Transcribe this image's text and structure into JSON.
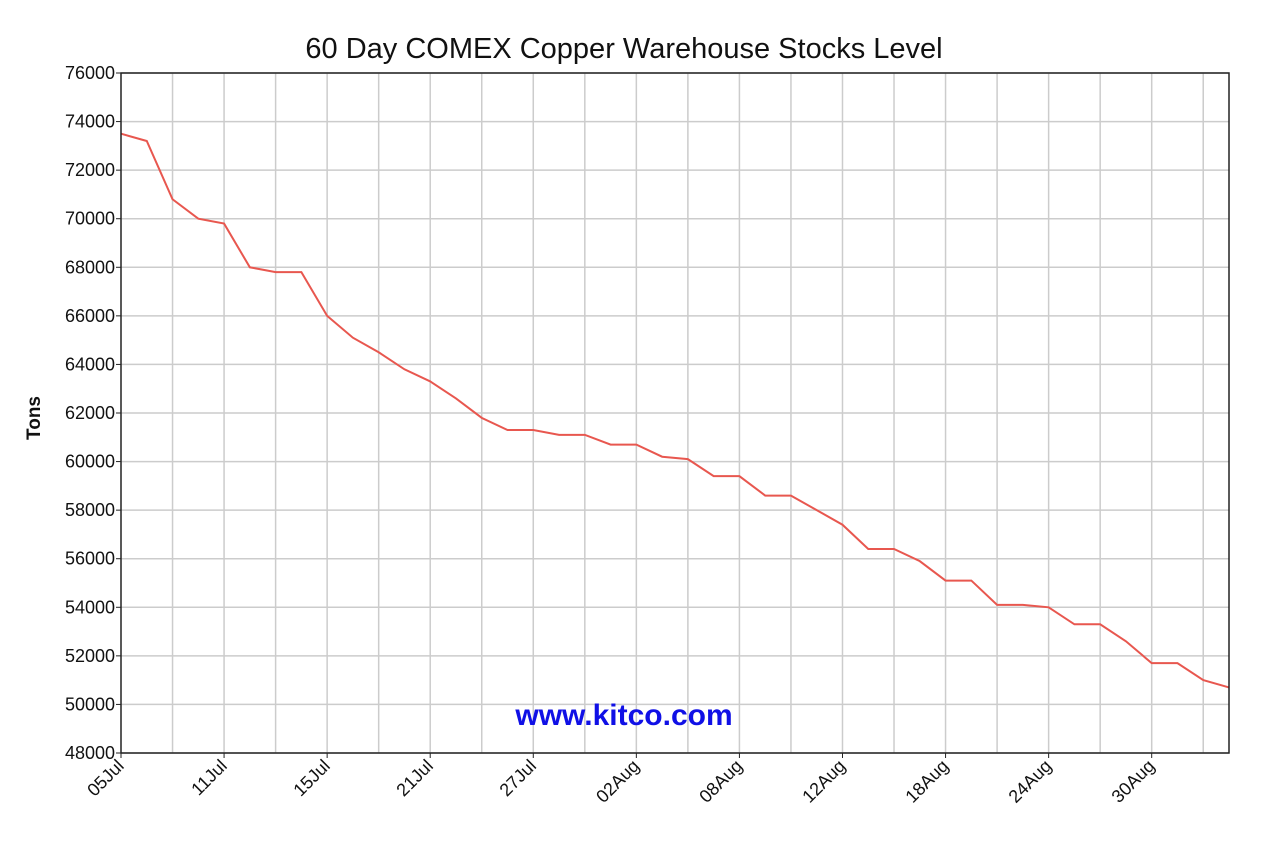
{
  "chart_data": {
    "type": "line",
    "title": "60 Day COMEX Copper Warehouse Stocks Level",
    "xlabel": "",
    "ylabel": "Tons",
    "watermark": "www.kitco.com",
    "ylim": [
      48000,
      76000
    ],
    "y_ticks": [
      "76000",
      "74000",
      "72000",
      "70000",
      "68000",
      "66000",
      "64000",
      "62000",
      "60000",
      "58000",
      "56000",
      "54000",
      "52000",
      "50000",
      "48000"
    ],
    "x_tick_labels": [
      "05Jul",
      "11Jul",
      "15Jul",
      "21Jul",
      "27Jul",
      "02Aug",
      "08Aug",
      "12Aug",
      "18Aug",
      "24Aug",
      "30Aug"
    ],
    "grid": true,
    "legend": "none",
    "line_color": "#e8574f",
    "watermark_color": "#1010e6",
    "series": [
      {
        "name": "",
        "values": [
          73500,
          73200,
          70800,
          70000,
          69800,
          68000,
          67800,
          67800,
          66000,
          65100,
          64500,
          63800,
          63300,
          62600,
          61800,
          61300,
          61300,
          61100,
          61100,
          60700,
          60700,
          60200,
          60100,
          59400,
          59400,
          58600,
          58600,
          58000,
          57400,
          56400,
          56400,
          55900,
          55100,
          55100,
          54100,
          54100,
          54000,
          53300,
          53300,
          52600,
          51700,
          51700,
          51000,
          50700
        ]
      }
    ]
  }
}
